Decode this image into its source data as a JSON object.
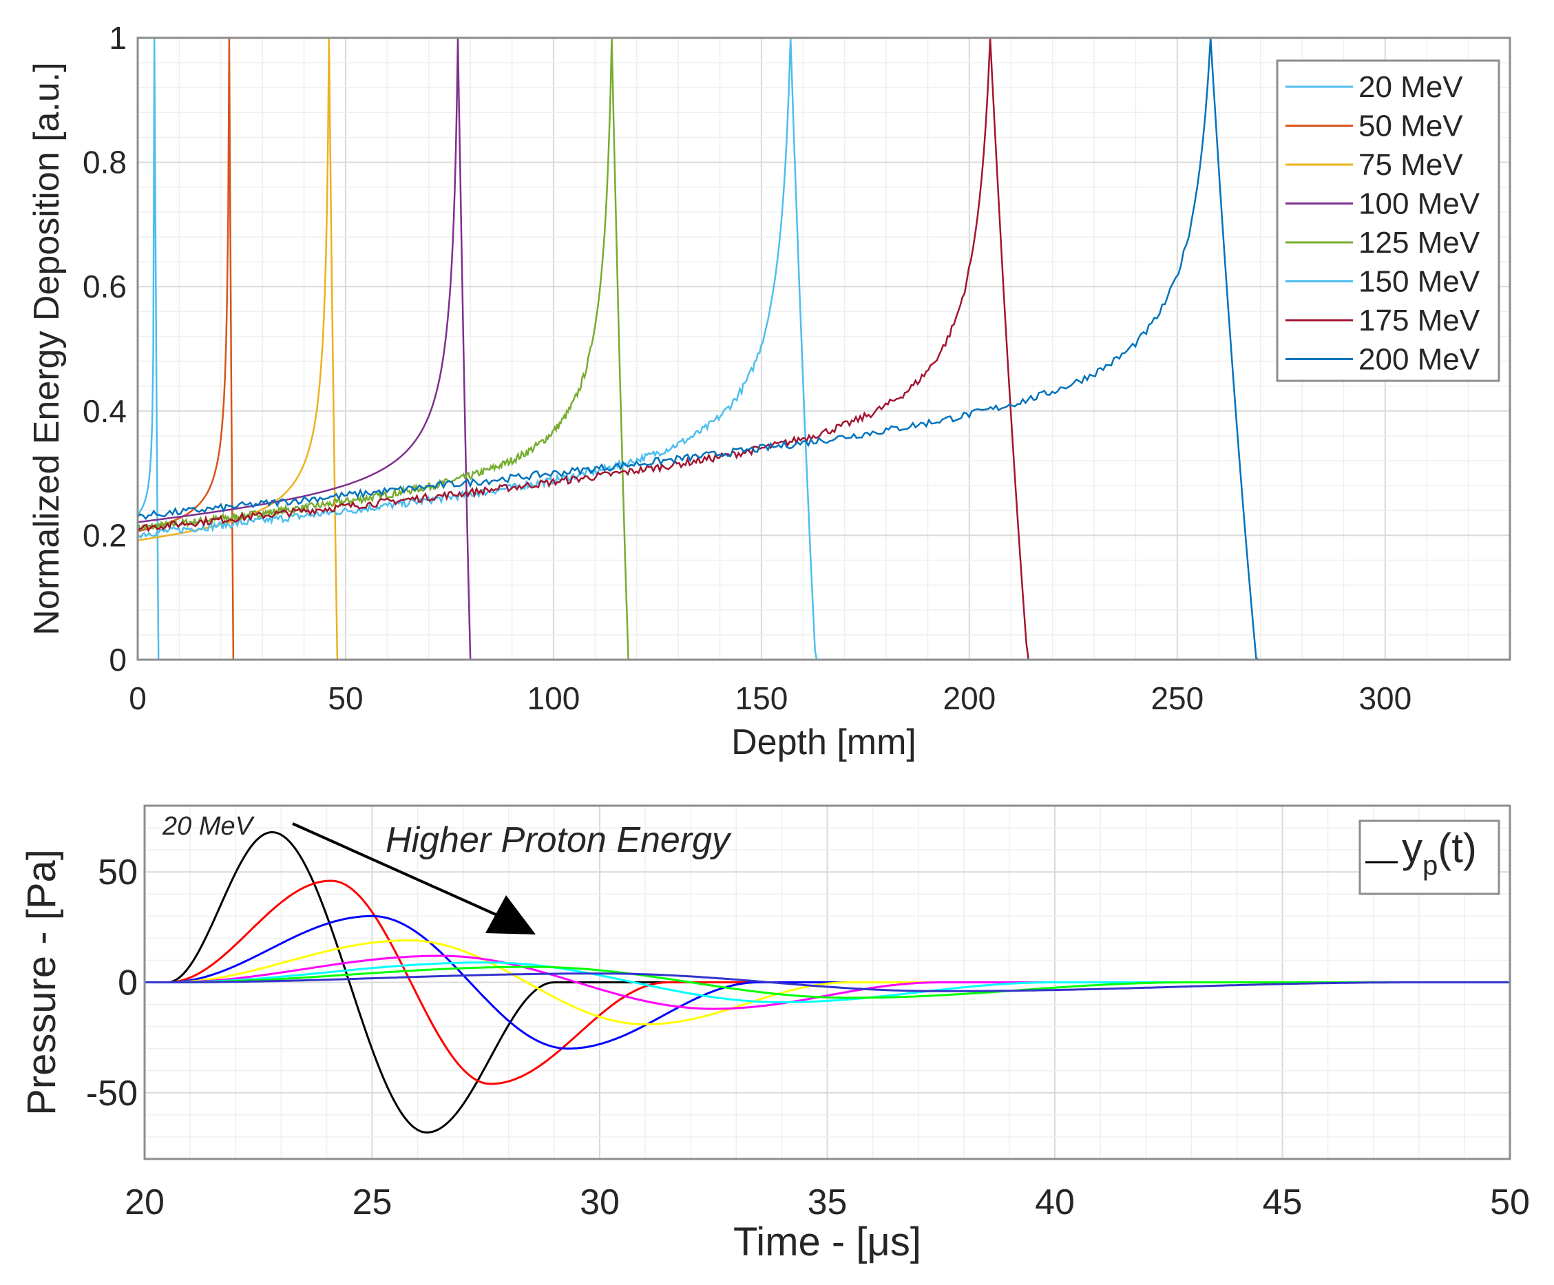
{
  "chart_data": [
    {
      "type": "line",
      "xlabel": "Depth [mm]",
      "ylabel": "Normalized Energy Deposition [a.u.]",
      "xlim": [
        0,
        330
      ],
      "ylim": [
        0,
        1
      ],
      "xticks": [
        0,
        50,
        100,
        150,
        200,
        250,
        300
      ],
      "xtick_labels": [
        "0",
        "50",
        "100",
        "150",
        "200",
        "250",
        "300"
      ],
      "yticks": [
        0,
        0.2,
        0.4,
        0.6,
        0.8,
        1
      ],
      "ytick_labels": [
        "0",
        "0.2",
        "0.4",
        "0.6",
        "0.8",
        "1"
      ],
      "grid": true,
      "minor_grid": true,
      "legend_position": "top-right",
      "series": [
        {
          "name": "20 MeV",
          "color": "#4DBEEE",
          "entrance": 0.2,
          "peak_depth": 4,
          "peak": 1,
          "end_depth": 5,
          "tail_end": 5
        },
        {
          "name": "50 MeV",
          "color": "#D95319",
          "entrance": 0.185,
          "peak_depth": 22,
          "peak": 1,
          "end_depth": 23,
          "tail_end": 30
        },
        {
          "name": "75 MeV",
          "color": "#EDB120",
          "entrance": 0.17,
          "peak_depth": 46,
          "peak": 1,
          "end_depth": 48,
          "tail_end": 58
        },
        {
          "name": "100 MeV",
          "color": "#7E2F8E",
          "entrance": 0.2,
          "peak_depth": 77,
          "peak": 1,
          "end_depth": 80,
          "tail_end": 100
        },
        {
          "name": "125 MeV",
          "color": "#77AC30",
          "entrance": 0.19,
          "peak_depth": 114,
          "peak": 1,
          "end_depth": 118,
          "tail_end": 130
        },
        {
          "name": "150 MeV",
          "color": "#4DBEEE",
          "entrance": 0.18,
          "peak_depth": 157,
          "peak": 1,
          "end_depth": 163,
          "tail_end": 185
        },
        {
          "name": "175 MeV",
          "color": "#A2142F",
          "entrance": 0.19,
          "peak_depth": 205,
          "peak": 1,
          "end_depth": 214,
          "tail_end": 230
        },
        {
          "name": "200 MeV",
          "color": "#0072BD",
          "entrance": 0.21,
          "peak_depth": 258,
          "peak": 1,
          "end_depth": 269,
          "tail_end": 280
        }
      ]
    },
    {
      "type": "line",
      "xlabel": "Time - [μs]",
      "ylabel": "Pressure - [Pa]",
      "xlim": [
        20,
        50
      ],
      "ylim": [
        -80,
        80
      ],
      "xticks": [
        20,
        25,
        30,
        35,
        40,
        45,
        50
      ],
      "xtick_labels": [
        "20",
        "25",
        "30",
        "35",
        "40",
        "45",
        "50"
      ],
      "yticks": [
        -50,
        0,
        50
      ],
      "ytick_labels": [
        "-50",
        "0",
        "50"
      ],
      "grid": true,
      "minor_grid": true,
      "legend_position": "top-right",
      "legend_label": "y",
      "legend_label_sub": "p",
      "legend_label_suffix": "(t)",
      "annotations": {
        "start_label": "20 MeV",
        "arrow_label": "Higher Proton Energy"
      },
      "series": [
        {
          "color": "#000000",
          "amplitude": 68,
          "min": -68,
          "t_start": 20.5,
          "t_peak": 22.8,
          "t_trough": 26.2,
          "t_end": 29.0
        },
        {
          "color": "#FF0000",
          "amplitude": 46,
          "min": -46,
          "t_start": 20.5,
          "t_peak": 24.1,
          "t_trough": 27.6,
          "t_end": 31.5
        },
        {
          "color": "#0000FF",
          "amplitude": 30,
          "min": -30,
          "t_start": 20.5,
          "t_peak": 25.0,
          "t_trough": 29.3,
          "t_end": 33.5
        },
        {
          "color": "#FFFF00",
          "amplitude": 19,
          "min": -19,
          "t_start": 20.5,
          "t_peak": 25.8,
          "t_trough": 31.0,
          "t_end": 35.5
        },
        {
          "color": "#FF00FF",
          "amplitude": 12,
          "min": -12,
          "t_start": 20.5,
          "t_peak": 26.5,
          "t_trough": 32.5,
          "t_end": 37.5
        },
        {
          "color": "#00FFFF",
          "amplitude": 9,
          "min": -9,
          "t_start": 20.5,
          "t_peak": 27.5,
          "t_trough": 34.0,
          "t_end": 40.0
        },
        {
          "color": "#00FF00",
          "amplitude": 7,
          "min": -7,
          "t_start": 20.5,
          "t_peak": 28.5,
          "t_trough": 35.5,
          "t_end": 43.0
        },
        {
          "color": "#3333CC",
          "amplitude": 4,
          "min": -4,
          "t_start": 20.5,
          "t_peak": 30.0,
          "t_trough": 37.5,
          "t_end": 48.0
        }
      ]
    }
  ]
}
